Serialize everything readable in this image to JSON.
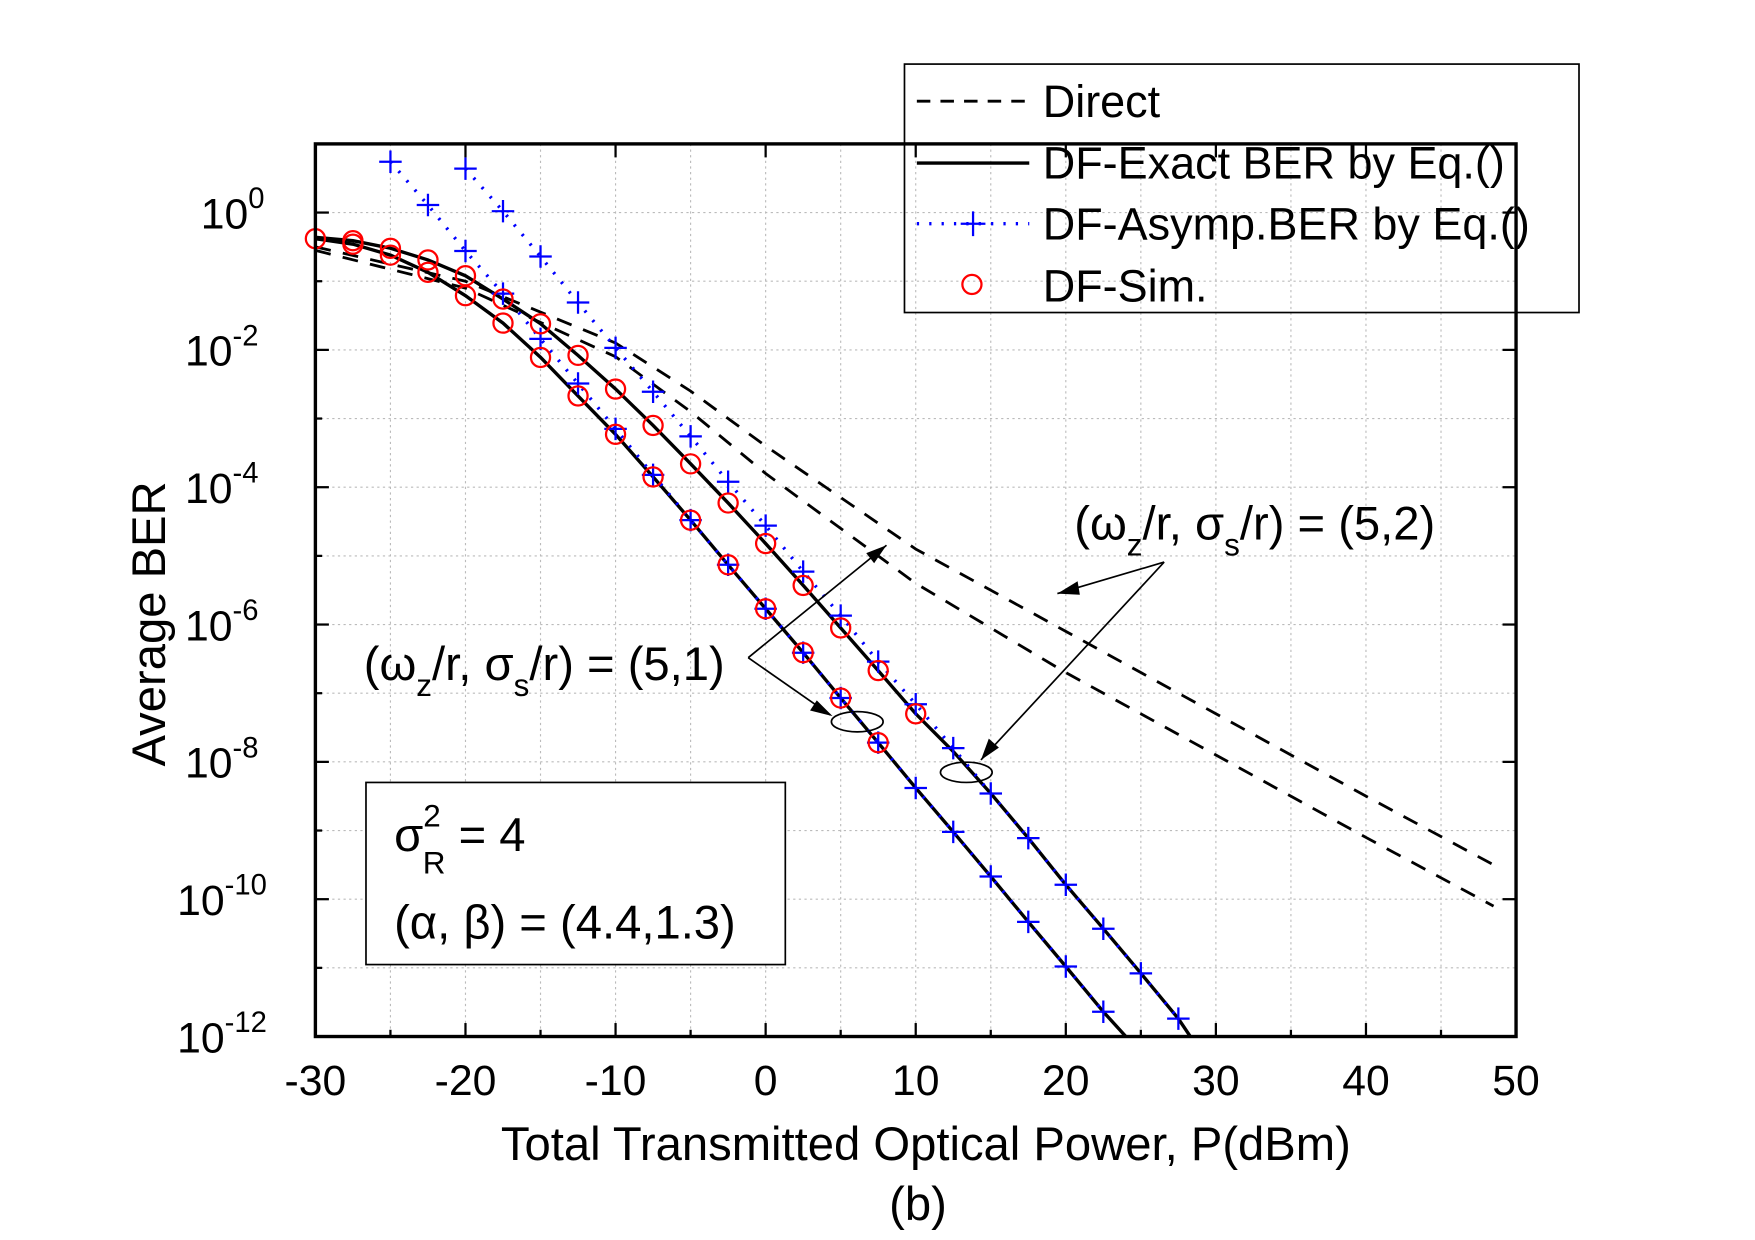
{
  "chart_data": {
    "type": "line",
    "caption": "(b)",
    "xlabel": "Total Transmitted Optical Power, P(dBm)",
    "ylabel": "Average BER",
    "xlim": [
      -30,
      50
    ],
    "ylim_log10": [
      -12,
      1
    ],
    "yscale": "log",
    "grid": true,
    "legend_position": "top-right",
    "x_ticks": [
      "-30",
      "-20",
      "-10",
      "0",
      "10",
      "20",
      "30",
      "40",
      "50"
    ],
    "y_ticks": [
      {
        "base": "10",
        "exp": "0",
        "value": 0
      },
      {
        "base": "10",
        "exp": "-2",
        "value": -2
      },
      {
        "base": "10",
        "exp": "-4",
        "value": -4
      },
      {
        "base": "10",
        "exp": "-6",
        "value": -6
      },
      {
        "base": "10",
        "exp": "-8",
        "value": -8
      },
      {
        "base": "10",
        "exp": "-10",
        "value": -10
      },
      {
        "base": "10",
        "exp": "-12",
        "value": -12
      }
    ],
    "legend": [
      {
        "label": "Direct",
        "style": "dash"
      },
      {
        "label": "DF-Exact BER by Eq.()",
        "style": "solid"
      },
      {
        "label": "DF-Asymp.BER by Eq.()",
        "style": "dot-plus"
      },
      {
        "label": "DF-Sim.",
        "style": "circle"
      }
    ],
    "colors": {
      "direct": "#000000",
      "exact": "#000000",
      "asymp": "#0000ff",
      "sim": "#ff0000"
    },
    "series": [
      {
        "name": "Direct (5,2)",
        "style": "dash",
        "x": [
          -30,
          -20,
          -10,
          -5,
          0,
          10,
          20,
          30,
          40,
          48.5
        ],
        "log10_ber": [
          -0.5,
          -1.0,
          -1.9,
          -2.6,
          -3.4,
          -4.9,
          -6.1,
          -7.3,
          -8.5,
          -9.5
        ]
      },
      {
        "name": "Direct (5,1)",
        "style": "dash",
        "x": [
          -30,
          -20,
          -10,
          -5,
          0,
          10,
          20,
          30,
          40,
          48.5
        ],
        "log10_ber": [
          -0.55,
          -1.1,
          -2.1,
          -2.9,
          -3.8,
          -5.4,
          -6.7,
          -7.9,
          -9.1,
          -10.1
        ]
      },
      {
        "name": "DF-Exact (5,1)",
        "style": "solid",
        "x": [
          -30,
          -27.5,
          -25,
          -22.5,
          -20,
          -17.5,
          -15,
          -12.5,
          -10,
          -7.5,
          -5,
          -2.5,
          0,
          2.5,
          5,
          7.5,
          10,
          12.5,
          15,
          17.5,
          20,
          22.5,
          24
        ],
        "log10_ber": [
          -0.38,
          -0.46,
          -0.62,
          -0.87,
          -1.21,
          -1.61,
          -2.11,
          -2.67,
          -3.23,
          -3.85,
          -4.48,
          -5.13,
          -5.77,
          -6.41,
          -7.07,
          -7.72,
          -8.38,
          -9.02,
          -9.67,
          -10.33,
          -10.98,
          -11.64,
          -12
        ]
      },
      {
        "name": "DF-Exact (5,2)",
        "style": "solid",
        "x": [
          -30,
          -27.5,
          -25,
          -22.5,
          -20,
          -17.5,
          -15,
          -12.5,
          -10,
          -7.5,
          -5,
          -2.5,
          0,
          2.5,
          5,
          7.5,
          10,
          12.5,
          15,
          17.5,
          20,
          22.5,
          25,
          27.5,
          28.3
        ],
        "log10_ber": [
          -0.36,
          -0.41,
          -0.52,
          -0.69,
          -0.92,
          -1.26,
          -1.62,
          -2.08,
          -2.57,
          -3.1,
          -3.66,
          -4.23,
          -4.82,
          -5.43,
          -6.05,
          -6.67,
          -7.3,
          -7.85,
          -8.46,
          -9.11,
          -9.79,
          -10.43,
          -11.08,
          -11.74,
          -12
        ]
      },
      {
        "name": "DF-Asymp (5,1)",
        "style": "dot-plus",
        "x": [
          -25,
          -22.5,
          -20,
          -17.5,
          -15,
          -12.5,
          -10,
          -7.5,
          -5,
          -2.5,
          0,
          2.5,
          5,
          7.5,
          10,
          12.5,
          15,
          17.5,
          20,
          22.5
        ],
        "log10_ber": [
          0.74,
          0.11,
          -0.56,
          -1.18,
          -1.84,
          -2.49,
          -3.15,
          -3.82,
          -4.48,
          -5.13,
          -5.77,
          -6.41,
          -7.07,
          -7.72,
          -8.38,
          -9.02,
          -9.67,
          -10.33,
          -10.98,
          -11.64
        ]
      },
      {
        "name": "DF-Asymp (5,2)",
        "style": "dot-plus",
        "x": [
          -20,
          -17.5,
          -15,
          -12.5,
          -10,
          -7.5,
          -5,
          -2.5,
          0,
          2.5,
          5,
          7.5,
          10,
          12.5,
          15,
          17.5,
          20,
          22.5,
          25,
          27.5
        ],
        "log10_ber": [
          0.64,
          0.02,
          -0.64,
          -1.31,
          -1.97,
          -2.61,
          -3.26,
          -3.92,
          -4.56,
          -5.23,
          -5.87,
          -6.54,
          -7.16,
          -7.8,
          -8.46,
          -9.11,
          -9.79,
          -10.43,
          -11.08,
          -11.74
        ]
      },
      {
        "name": "DF-Sim (5,1)",
        "style": "circle",
        "x": [
          -30,
          -27.5,
          -25,
          -22.5,
          -20,
          -17.5,
          -15,
          -12.5,
          -10,
          -7.5,
          -5,
          -2.5,
          0,
          2.5,
          5,
          7.5
        ],
        "log10_ber": [
          -0.38,
          -0.46,
          -0.62,
          -0.87,
          -1.21,
          -1.61,
          -2.11,
          -2.67,
          -3.23,
          -3.85,
          -4.48,
          -5.13,
          -5.77,
          -6.41,
          -7.07,
          -7.72
        ]
      },
      {
        "name": "DF-Sim (5,2)",
        "style": "circle",
        "x": [
          -27.5,
          -25,
          -22.5,
          -20,
          -17.5,
          -15,
          -12.5,
          -10,
          -7.5,
          -5,
          -2.5,
          0,
          2.5,
          5,
          7.5,
          10
        ],
        "log10_ber": [
          -0.41,
          -0.52,
          -0.69,
          -0.92,
          -1.26,
          -1.62,
          -2.08,
          -2.57,
          -3.1,
          -3.66,
          -4.23,
          -4.82,
          -5.43,
          -6.05,
          -6.67,
          -7.3
        ]
      }
    ],
    "annotations": {
      "a52": {
        "pre": "(ω",
        "sub1": "z",
        "mid": "/r, σ",
        "sub2": "s",
        "post": "/r) = (5,2)"
      },
      "a51": {
        "pre": "(ω",
        "sub1": "z",
        "mid": "/r, σ",
        "sub2": "s",
        "post": "/r) = (5,1)"
      },
      "sigma": {
        "pre": "σ",
        "sup": "2",
        "sub": "R",
        "post": " = 4"
      },
      "alphabeta": "(α, β) = (4.4,1.3)"
    }
  }
}
